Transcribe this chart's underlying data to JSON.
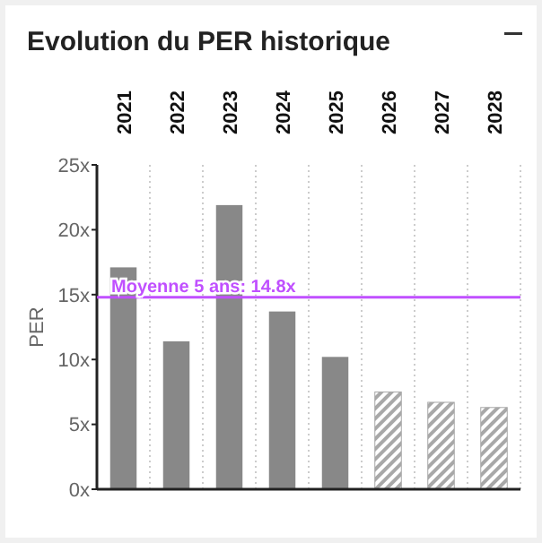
{
  "chart_data": {
    "type": "bar",
    "title": "Evolution du PER historique",
    "ylabel": "PER",
    "categories": [
      "2021",
      "2022",
      "2023",
      "2024",
      "2025",
      "2026",
      "2027",
      "2028"
    ],
    "series": [
      {
        "color": "#888888",
        "values": [
          17.1,
          11.4,
          21.9,
          13.7,
          10.2,
          null,
          null,
          null
        ]
      },
      {
        "color": "#a8a8a8",
        "values": [
          null,
          null,
          null,
          null,
          null,
          7.5,
          6.7,
          6.3
        ]
      }
    ],
    "ylim": [
      0,
      25
    ],
    "yticks": [
      {
        "value": 0,
        "label": "0x"
      },
      {
        "value": 5,
        "label": "5x"
      },
      {
        "value": 10,
        "label": "10x"
      },
      {
        "value": 15,
        "label": "15x"
      },
      {
        "value": 20,
        "label": "20x"
      },
      {
        "value": 25,
        "label": "25x"
      }
    ],
    "ref_lines": [
      {
        "axis": "y",
        "value": 14.8,
        "label": "Moyenne 5 ans: 14.8x",
        "color": "#c050ff"
      }
    ],
    "grid": "x"
  }
}
